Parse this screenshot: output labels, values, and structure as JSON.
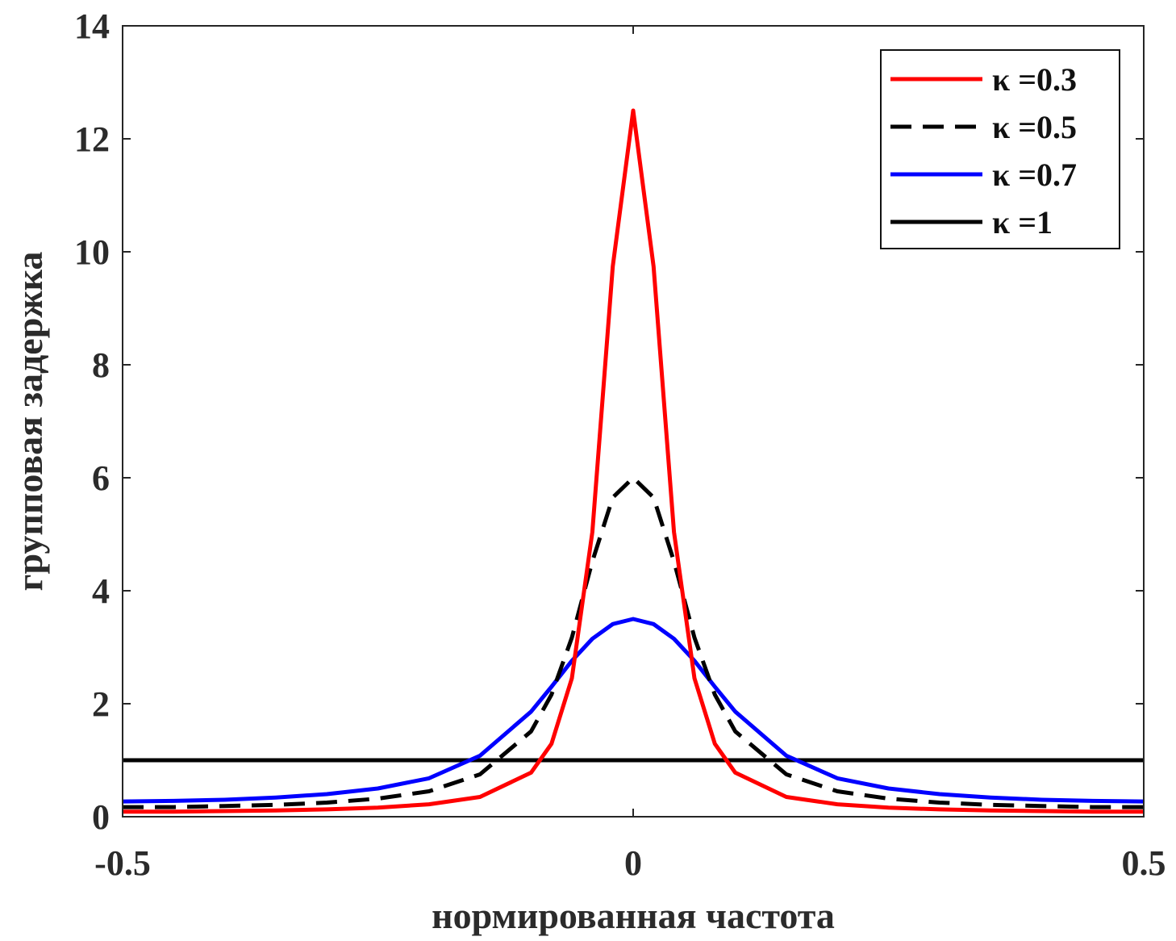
{
  "chart_data": {
    "type": "line",
    "xlabel": "нормированная частота",
    "ylabel": "групповая задержка",
    "xlim": [
      -0.5,
      0.5
    ],
    "ylim": [
      0,
      14
    ],
    "x_ticks": [
      "-0.5",
      "0",
      "0.5"
    ],
    "y_ticks": [
      "0",
      "2",
      "4",
      "6",
      "8",
      "10",
      "12",
      "14"
    ],
    "grid": false,
    "legend_position": "top-right",
    "x": [
      -0.5,
      -0.45,
      -0.4,
      -0.35,
      -0.3,
      -0.25,
      -0.2,
      -0.15,
      -0.1,
      -0.08,
      -0.06,
      -0.04,
      -0.02,
      0,
      0.02,
      0.04,
      0.06,
      0.08,
      0.1,
      0.15,
      0.2,
      0.25,
      0.3,
      0.35,
      0.4,
      0.45,
      0.5
    ],
    "series": [
      {
        "name": "κ =0.3",
        "color": "#ff0000",
        "style": "solid",
        "values": [
          0.09,
          0.09,
          0.1,
          0.11,
          0.13,
          0.16,
          0.22,
          0.35,
          0.78,
          1.29,
          2.45,
          5.04,
          9.74,
          12.5,
          9.74,
          5.04,
          2.45,
          1.29,
          0.78,
          0.35,
          0.22,
          0.16,
          0.13,
          0.11,
          0.1,
          0.09,
          0.09
        ]
      },
      {
        "name": "κ =0.5",
        "color": "#000000",
        "style": "dashed",
        "values": [
          0.17,
          0.17,
          0.19,
          0.21,
          0.25,
          0.32,
          0.45,
          0.75,
          1.51,
          2.16,
          3.17,
          4.52,
          5.65,
          6.0,
          5.65,
          4.52,
          3.17,
          2.16,
          1.51,
          0.75,
          0.45,
          0.32,
          0.25,
          0.21,
          0.19,
          0.17,
          0.17
        ]
      },
      {
        "name": "κ =0.7",
        "color": "#0000ff",
        "style": "solid",
        "values": [
          0.27,
          0.28,
          0.3,
          0.34,
          0.4,
          0.5,
          0.68,
          1.08,
          1.86,
          2.3,
          2.76,
          3.15,
          3.41,
          3.5,
          3.41,
          3.15,
          2.76,
          2.3,
          1.86,
          1.08,
          0.68,
          0.5,
          0.4,
          0.34,
          0.3,
          0.28,
          0.27
        ]
      },
      {
        "name": "κ =1",
        "color": "#000000",
        "style": "solid",
        "values": [
          1,
          1,
          1,
          1,
          1,
          1,
          1,
          1,
          1,
          1,
          1,
          1,
          1,
          1,
          1,
          1,
          1,
          1,
          1,
          1,
          1,
          1,
          1,
          1,
          1,
          1,
          1
        ]
      }
    ]
  }
}
